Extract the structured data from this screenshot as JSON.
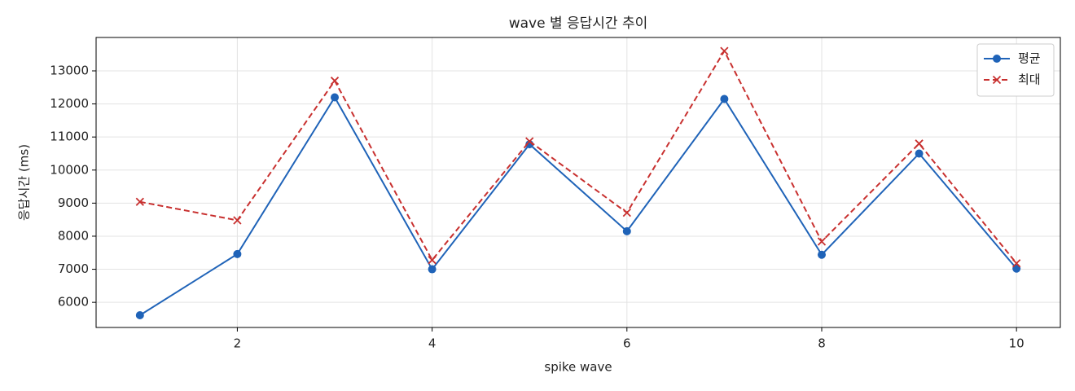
{
  "chart_data": {
    "type": "line",
    "title": "wave 별 응답시간 추이",
    "x_label": "spike wave",
    "y_label": "응답시간 (ms)",
    "x": [
      1,
      2,
      3,
      4,
      5,
      6,
      7,
      8,
      9,
      10
    ],
    "series": [
      {
        "name": "평균",
        "color": "#1f63b8",
        "marker": "o",
        "linestyle": "solid",
        "values": [
          5610,
          7460,
          12200,
          7000,
          10780,
          8150,
          12150,
          7440,
          10500,
          7020
        ]
      },
      {
        "name": "최대",
        "color": "#c8302f",
        "marker": "x",
        "linestyle": "dashed",
        "values": [
          9040,
          8480,
          12700,
          7280,
          10870,
          8710,
          13600,
          7840,
          10800,
          7180
        ]
      }
    ],
    "xlim": [
      0.55,
      10.45
    ],
    "xticks": [
      2,
      4,
      6,
      8,
      10
    ],
    "ylim": [
      5240,
      14010
    ],
    "yticks": [
      6000,
      7000,
      8000,
      9000,
      10000,
      11000,
      12000,
      13000
    ],
    "grid": true,
    "legend": "upper right"
  }
}
